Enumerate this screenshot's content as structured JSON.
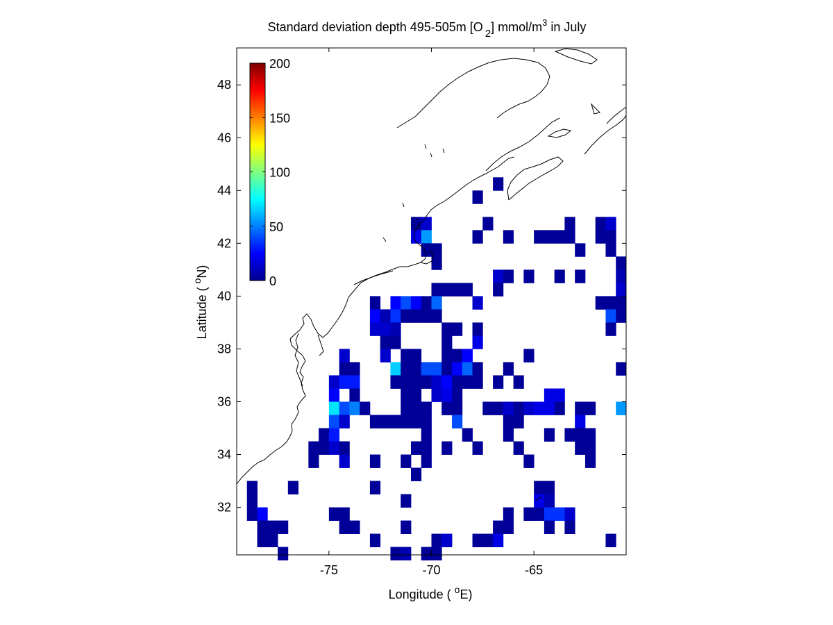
{
  "title": {
    "prefix": "Standard deviation depth 495-505m [O",
    "sub": "2",
    "mid": "] mmol/m",
    "sup": "3",
    "suffix": " in July"
  },
  "xlabel": {
    "prefix": "Longitude ( ",
    "sup": "o",
    "suffix": "E)"
  },
  "ylabel": {
    "prefix": "Latitude ( ",
    "sup": "o",
    "suffix": "N)"
  },
  "colors": {
    "coast": "#000000",
    "frame": "#000000",
    "background": "#ffffff"
  },
  "chart_data": {
    "type": "heatmap",
    "xlim": [
      -79.5,
      -60.5
    ],
    "ylim": [
      30.2,
      49.4
    ],
    "xticks": [
      -75,
      -70,
      -65
    ],
    "yticks": [
      32,
      34,
      36,
      38,
      40,
      42,
      44,
      46,
      48
    ],
    "grid": false,
    "colorbar": {
      "colormap": "jet",
      "range": [
        0,
        200
      ],
      "ticks": [
        0,
        50,
        100,
        150,
        200
      ],
      "placement": "top-left"
    },
    "cell_size_deg": 0.5,
    "cells": [
      [
        -66.75,
        44.25,
        5
      ],
      [
        -67.75,
        43.75,
        5
      ],
      [
        -70.75,
        42.75,
        5
      ],
      [
        -70.25,
        42.75,
        15
      ],
      [
        -67.25,
        42.75,
        5
      ],
      [
        -63.25,
        42.75,
        5
      ],
      [
        -61.75,
        42.75,
        5
      ],
      [
        -61.25,
        42.75,
        15
      ],
      [
        -70.75,
        42.25,
        20
      ],
      [
        -70.25,
        42.25,
        55
      ],
      [
        -67.75,
        42.25,
        5
      ],
      [
        -66.25,
        42.25,
        5
      ],
      [
        -64.75,
        42.25,
        5
      ],
      [
        -64.25,
        42.25,
        5
      ],
      [
        -63.75,
        42.25,
        5
      ],
      [
        -63.25,
        42.25,
        5
      ],
      [
        -61.75,
        42.25,
        5
      ],
      [
        -61.25,
        42.25,
        5
      ],
      [
        -70.25,
        41.75,
        5
      ],
      [
        -69.75,
        41.75,
        5
      ],
      [
        -62.75,
        41.75,
        5
      ],
      [
        -61.25,
        41.75,
        5
      ],
      [
        -69.75,
        41.25,
        5
      ],
      [
        -60.75,
        41.25,
        5
      ],
      [
        -66.75,
        40.75,
        15
      ],
      [
        -66.25,
        40.75,
        5
      ],
      [
        -65.25,
        40.75,
        5
      ],
      [
        -63.75,
        40.75,
        5
      ],
      [
        -62.75,
        40.75,
        5
      ],
      [
        -60.75,
        40.75,
        10
      ],
      [
        -69.75,
        40.25,
        5
      ],
      [
        -69.25,
        40.25,
        5
      ],
      [
        -68.75,
        40.25,
        5
      ],
      [
        -68.25,
        40.25,
        5
      ],
      [
        -66.75,
        40.25,
        5
      ],
      [
        -60.75,
        40.25,
        15
      ],
      [
        -72.75,
        39.75,
        5
      ],
      [
        -71.75,
        39.75,
        25
      ],
      [
        -71.25,
        39.75,
        40
      ],
      [
        -70.75,
        39.75,
        25
      ],
      [
        -70.25,
        39.75,
        5
      ],
      [
        -69.75,
        39.75,
        45
      ],
      [
        -67.75,
        39.75,
        15
      ],
      [
        -61.75,
        39.75,
        5
      ],
      [
        -61.25,
        39.75,
        5
      ],
      [
        -60.75,
        39.75,
        5
      ],
      [
        -72.75,
        39.25,
        25
      ],
      [
        -72.25,
        39.25,
        10
      ],
      [
        -71.75,
        39.25,
        35
      ],
      [
        -71.25,
        39.25,
        5
      ],
      [
        -70.75,
        39.25,
        5
      ],
      [
        -70.25,
        39.25,
        5
      ],
      [
        -69.75,
        39.25,
        5
      ],
      [
        -61.25,
        39.25,
        40
      ],
      [
        -60.75,
        39.25,
        5
      ],
      [
        -72.75,
        38.75,
        15
      ],
      [
        -72.25,
        38.75,
        15
      ],
      [
        -71.75,
        38.75,
        10
      ],
      [
        -69.25,
        38.75,
        5
      ],
      [
        -68.75,
        38.75,
        5
      ],
      [
        -67.75,
        38.75,
        5
      ],
      [
        -61.25,
        38.75,
        5
      ],
      [
        -72.25,
        38.25,
        5
      ],
      [
        -71.75,
        38.25,
        5
      ],
      [
        -69.25,
        38.25,
        5
      ],
      [
        -67.75,
        38.25,
        20
      ],
      [
        -74.25,
        37.75,
        15
      ],
      [
        -72.25,
        37.75,
        15
      ],
      [
        -71.25,
        37.75,
        5
      ],
      [
        -70.75,
        37.75,
        5
      ],
      [
        -69.25,
        37.75,
        5
      ],
      [
        -68.75,
        37.75,
        5
      ],
      [
        -68.25,
        37.75,
        25
      ],
      [
        -65.25,
        37.75,
        5
      ],
      [
        -74.25,
        37.25,
        5
      ],
      [
        -73.75,
        37.25,
        5
      ],
      [
        -71.75,
        37.25,
        65
      ],
      [
        -71.25,
        37.25,
        5
      ],
      [
        -70.75,
        37.25,
        5
      ],
      [
        -70.25,
        37.25,
        40
      ],
      [
        -69.75,
        37.25,
        40
      ],
      [
        -69.25,
        37.25,
        5
      ],
      [
        -68.75,
        37.25,
        25
      ],
      [
        -68.25,
        37.25,
        45
      ],
      [
        -67.75,
        37.25,
        5
      ],
      [
        -66.25,
        37.25,
        5
      ],
      [
        -60.75,
        37.25,
        5
      ],
      [
        -74.75,
        36.75,
        15
      ],
      [
        -74.25,
        36.75,
        30
      ],
      [
        -73.75,
        36.75,
        30
      ],
      [
        -71.75,
        36.75,
        5
      ],
      [
        -71.25,
        36.75,
        5
      ],
      [
        -70.75,
        36.75,
        5
      ],
      [
        -70.25,
        36.75,
        5
      ],
      [
        -69.75,
        36.75,
        15
      ],
      [
        -69.25,
        36.75,
        25
      ],
      [
        -68.75,
        36.75,
        5
      ],
      [
        -68.25,
        36.75,
        5
      ],
      [
        -67.75,
        36.75,
        5
      ],
      [
        -66.75,
        36.75,
        5
      ],
      [
        -65.75,
        36.75,
        5
      ],
      [
        -74.75,
        36.25,
        25
      ],
      [
        -73.75,
        36.25,
        5
      ],
      [
        -71.25,
        36.25,
        5
      ],
      [
        -70.75,
        36.25,
        5
      ],
      [
        -69.75,
        36.25,
        15
      ],
      [
        -69.25,
        36.25,
        20
      ],
      [
        -68.75,
        36.25,
        5
      ],
      [
        -64.25,
        36.25,
        20
      ],
      [
        -63.75,
        36.25,
        20
      ],
      [
        -74.75,
        35.75,
        70
      ],
      [
        -74.25,
        35.75,
        40
      ],
      [
        -73.75,
        35.75,
        50
      ],
      [
        -73.25,
        35.75,
        5
      ],
      [
        -71.25,
        35.75,
        5
      ],
      [
        -70.75,
        35.75,
        5
      ],
      [
        -70.25,
        35.75,
        5
      ],
      [
        -69.25,
        35.75,
        5
      ],
      [
        -68.75,
        35.75,
        5
      ],
      [
        -67.25,
        35.75,
        5
      ],
      [
        -66.75,
        35.75,
        5
      ],
      [
        -66.25,
        35.75,
        15
      ],
      [
        -65.75,
        35.75,
        5
      ],
      [
        -65.25,
        35.75,
        15
      ],
      [
        -64.75,
        35.75,
        20
      ],
      [
        -64.25,
        35.75,
        20
      ],
      [
        -63.75,
        35.75,
        5
      ],
      [
        -62.75,
        35.75,
        5
      ],
      [
        -62.25,
        35.75,
        5
      ],
      [
        -60.75,
        35.75,
        55
      ],
      [
        -74.75,
        35.25,
        40
      ],
      [
        -74.25,
        35.25,
        15
      ],
      [
        -72.75,
        35.25,
        5
      ],
      [
        -72.25,
        35.25,
        5
      ],
      [
        -71.75,
        35.25,
        5
      ],
      [
        -71.25,
        35.25,
        5
      ],
      [
        -70.75,
        35.25,
        5
      ],
      [
        -70.25,
        35.25,
        5
      ],
      [
        -68.75,
        35.25,
        40
      ],
      [
        -66.25,
        35.25,
        5
      ],
      [
        -65.75,
        35.25,
        5
      ],
      [
        -62.75,
        35.25,
        20
      ],
      [
        -75.25,
        34.75,
        5
      ],
      [
        -74.75,
        34.75,
        30
      ],
      [
        -70.25,
        34.75,
        5
      ],
      [
        -68.25,
        34.75,
        5
      ],
      [
        -66.25,
        34.75,
        5
      ],
      [
        -64.25,
        34.75,
        5
      ],
      [
        -63.25,
        34.75,
        5
      ],
      [
        -62.75,
        34.75,
        5
      ],
      [
        -62.25,
        34.75,
        5
      ],
      [
        -75.75,
        34.25,
        5
      ],
      [
        -75.25,
        34.25,
        5
      ],
      [
        -74.75,
        34.25,
        15
      ],
      [
        -74.25,
        34.25,
        5
      ],
      [
        -70.75,
        34.25,
        5
      ],
      [
        -70.25,
        34.25,
        5
      ],
      [
        -69.25,
        34.25,
        5
      ],
      [
        -67.75,
        34.25,
        5
      ],
      [
        -65.75,
        34.25,
        5
      ],
      [
        -62.75,
        34.25,
        5
      ],
      [
        -62.25,
        34.25,
        5
      ],
      [
        -75.75,
        33.75,
        5
      ],
      [
        -74.25,
        33.75,
        15
      ],
      [
        -72.75,
        33.75,
        5
      ],
      [
        -71.25,
        33.75,
        5
      ],
      [
        -70.25,
        33.75,
        5
      ],
      [
        -65.25,
        33.75,
        5
      ],
      [
        -62.25,
        33.75,
        5
      ],
      [
        -70.75,
        33.25,
        5
      ],
      [
        -76.75,
        32.75,
        5
      ],
      [
        -72.75,
        32.75,
        5
      ],
      [
        -64.75,
        32.75,
        5
      ],
      [
        -64.25,
        32.75,
        5
      ],
      [
        -78.75,
        32.75,
        5
      ],
      [
        -78.75,
        32.25,
        5
      ],
      [
        -71.25,
        32.25,
        5
      ],
      [
        -64.75,
        32.25,
        20
      ],
      [
        -64.25,
        32.25,
        10
      ],
      [
        -78.75,
        31.75,
        5
      ],
      [
        -78.25,
        31.75,
        25
      ],
      [
        -74.75,
        31.75,
        5
      ],
      [
        -74.25,
        31.75,
        5
      ],
      [
        -66.25,
        31.75,
        5
      ],
      [
        -65.25,
        31.75,
        5
      ],
      [
        -64.75,
        31.75,
        5
      ],
      [
        -64.25,
        31.75,
        35
      ],
      [
        -63.75,
        31.75,
        35
      ],
      [
        -63.25,
        31.75,
        15
      ],
      [
        -78.25,
        31.25,
        5
      ],
      [
        -77.75,
        31.25,
        5
      ],
      [
        -77.25,
        31.25,
        5
      ],
      [
        -74.25,
        31.25,
        5
      ],
      [
        -73.75,
        31.25,
        5
      ],
      [
        -71.25,
        31.25,
        5
      ],
      [
        -66.75,
        31.25,
        5
      ],
      [
        -66.25,
        31.25,
        5
      ],
      [
        -64.25,
        31.25,
        5
      ],
      [
        -63.25,
        31.25,
        5
      ],
      [
        -78.25,
        30.75,
        5
      ],
      [
        -77.75,
        30.75,
        5
      ],
      [
        -72.75,
        30.75,
        5
      ],
      [
        -69.75,
        30.75,
        5
      ],
      [
        -69.25,
        30.75,
        15
      ],
      [
        -67.75,
        30.75,
        5
      ],
      [
        -67.25,
        30.75,
        5
      ],
      [
        -66.75,
        30.75,
        20
      ],
      [
        -61.25,
        30.75,
        5
      ],
      [
        -77.25,
        30.25,
        5
      ],
      [
        -71.75,
        30.25,
        5
      ],
      [
        -71.25,
        30.25,
        10
      ],
      [
        -70.25,
        30.25,
        5
      ],
      [
        -69.75,
        30.25,
        5
      ]
    ]
  }
}
